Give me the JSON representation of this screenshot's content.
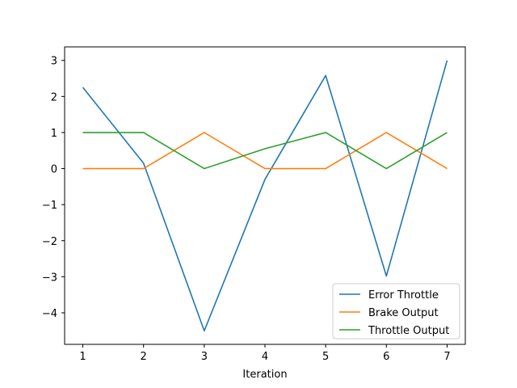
{
  "chart_data": {
    "type": "line",
    "title": "",
    "xlabel": "Iteration",
    "ylabel": "",
    "x": [
      1,
      2,
      3,
      4,
      5,
      6,
      7
    ],
    "xlim": [
      0.7,
      7.3
    ],
    "ylim": [
      -4.875,
      3.375
    ],
    "xticks": [
      1,
      2,
      3,
      4,
      5,
      6,
      7
    ],
    "yticks": [
      3,
      2,
      1,
      0,
      -1,
      -2,
      -3,
      -4
    ],
    "ytick_labels": [
      "3",
      "2",
      "1",
      "0",
      "−1",
      "−2",
      "−3",
      "−4"
    ],
    "grid": false,
    "legend_position": "bottom-right",
    "series": [
      {
        "name": "Error Throttle",
        "color": "#1f77b4",
        "values": [
          2.25,
          0.15,
          -4.5,
          -0.3,
          2.58,
          -2.98,
          3.0
        ]
      },
      {
        "name": "Brake Output",
        "color": "#ff7f0e",
        "values": [
          0,
          0,
          1,
          0,
          0,
          1,
          0
        ]
      },
      {
        "name": "Throttle Output",
        "color": "#2ca02c",
        "values": [
          1,
          1,
          0,
          0.55,
          1,
          0,
          1
        ]
      }
    ]
  }
}
